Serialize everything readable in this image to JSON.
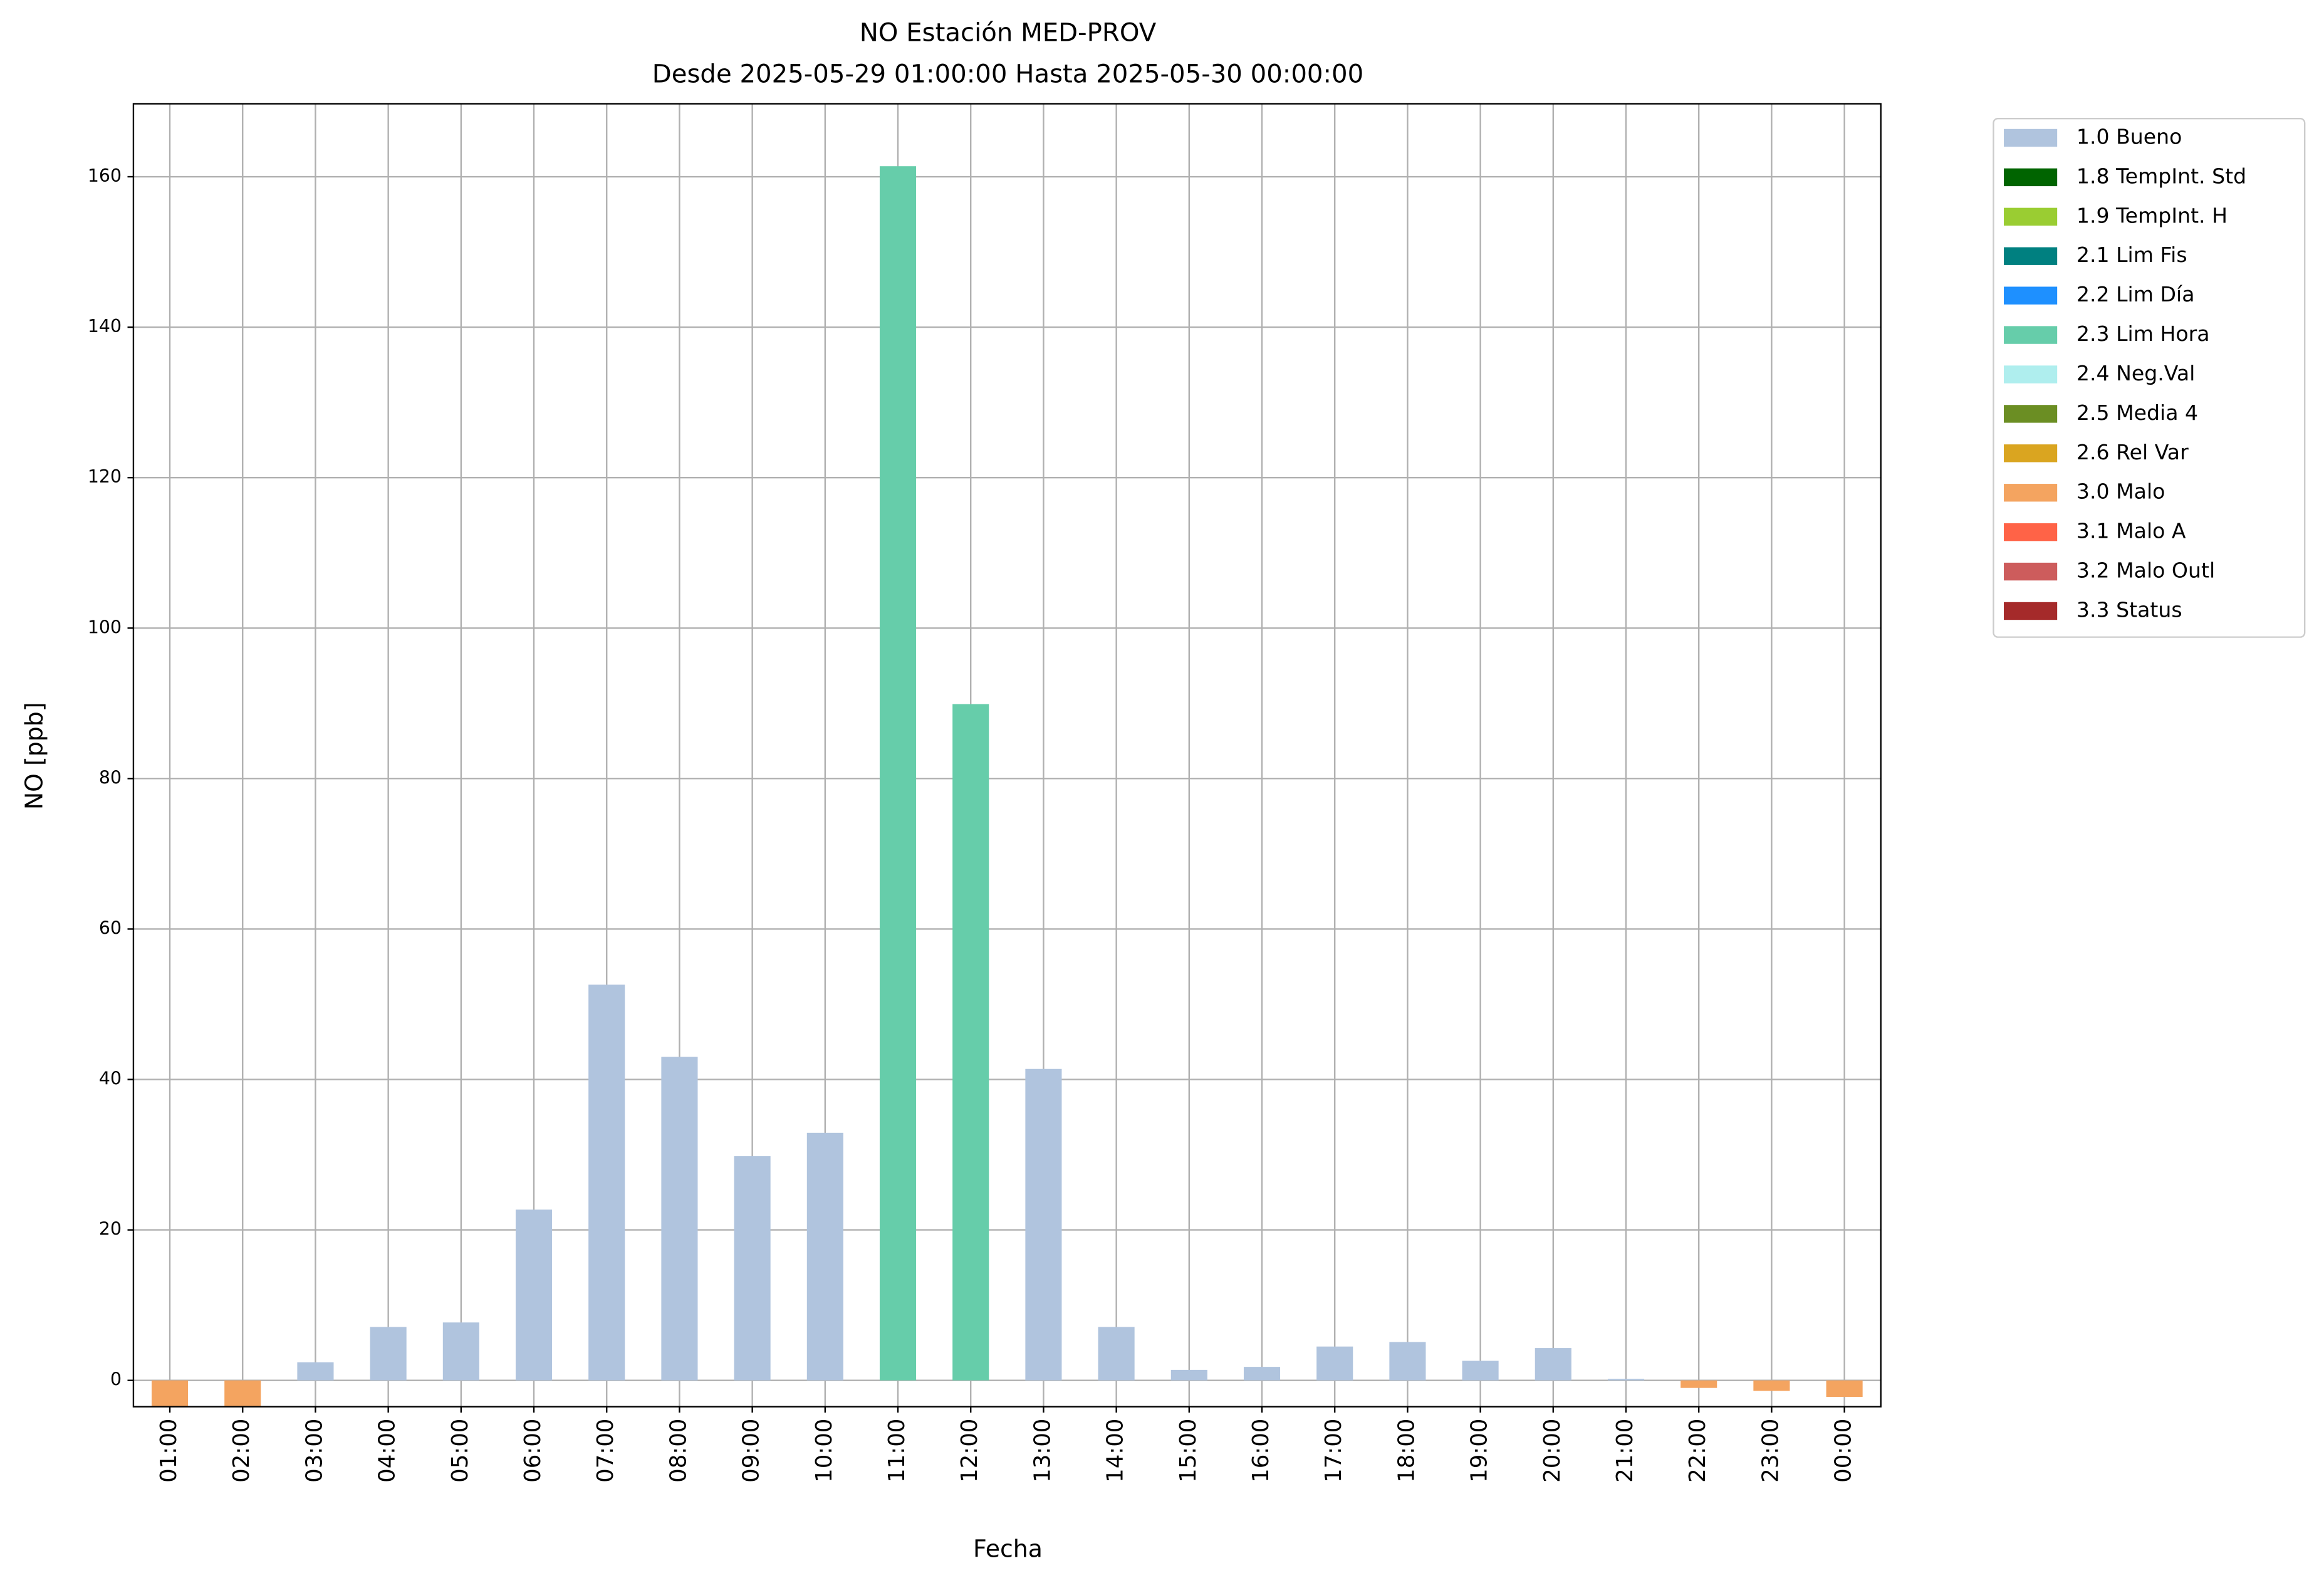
{
  "chart_data": {
    "type": "bar",
    "title": "NO Estación MED-PROV",
    "subtitle": "Desde 2025-05-29 01:00:00 Hasta 2025-05-30 00:00:00",
    "x_label": "Fecha",
    "y_label": "NO [ppb]",
    "categories": [
      "01:00",
      "02:00",
      "03:00",
      "04:00",
      "05:00",
      "06:00",
      "07:00",
      "08:00",
      "09:00",
      "10:00",
      "11:00",
      "12:00",
      "13:00",
      "14:00",
      "15:00",
      "16:00",
      "17:00",
      "18:00",
      "19:00",
      "20:00",
      "21:00",
      "22:00",
      "23:00",
      "00:00"
    ],
    "series": [
      {
        "name": "1.0 Bueno",
        "color": "#b0c4de",
        "values": [
          null,
          null,
          2.4,
          7.1,
          7.7,
          22.7,
          52.6,
          43.0,
          29.8,
          32.9,
          null,
          null,
          41.4,
          7.1,
          1.4,
          1.8,
          4.5,
          5.1,
          2.6,
          4.3,
          0.2,
          null,
          null,
          null
        ]
      },
      {
        "name": "1.8 TempInt. Std",
        "color": "#006400",
        "values": [
          null,
          null,
          null,
          null,
          null,
          null,
          null,
          null,
          null,
          null,
          null,
          null,
          null,
          null,
          null,
          null,
          null,
          null,
          null,
          null,
          null,
          null,
          null,
          null
        ]
      },
      {
        "name": "1.9 TempInt. H",
        "color": "#9acd32",
        "values": [
          null,
          null,
          null,
          null,
          null,
          null,
          null,
          null,
          null,
          null,
          null,
          null,
          null,
          null,
          null,
          null,
          null,
          null,
          null,
          null,
          null,
          null,
          null,
          null
        ]
      },
      {
        "name": "2.1 Lim Fis",
        "color": "#008080",
        "values": [
          null,
          null,
          null,
          null,
          null,
          null,
          null,
          null,
          null,
          null,
          null,
          null,
          null,
          null,
          null,
          null,
          null,
          null,
          null,
          null,
          null,
          null,
          null,
          null
        ]
      },
      {
        "name": "2.2 Lim Día",
        "color": "#1e90ff",
        "values": [
          null,
          null,
          null,
          null,
          null,
          null,
          null,
          null,
          null,
          null,
          null,
          null,
          null,
          null,
          null,
          null,
          null,
          null,
          null,
          null,
          null,
          null,
          null,
          null
        ]
      },
      {
        "name": "2.3 Lim Hora",
        "color": "#66cdaa",
        "values": [
          null,
          null,
          null,
          null,
          null,
          null,
          null,
          null,
          null,
          null,
          161.4,
          89.9,
          null,
          null,
          null,
          null,
          null,
          null,
          null,
          null,
          null,
          null,
          null,
          null
        ]
      },
      {
        "name": "2.4 Neg.Val",
        "color": "#afeeee",
        "values": [
          null,
          null,
          null,
          null,
          null,
          null,
          null,
          null,
          null,
          null,
          null,
          null,
          null,
          null,
          null,
          null,
          null,
          null,
          null,
          null,
          null,
          null,
          null,
          null
        ]
      },
      {
        "name": "2.5 Media 4",
        "color": "#6b8e23",
        "values": [
          null,
          null,
          null,
          null,
          null,
          null,
          null,
          null,
          null,
          null,
          null,
          null,
          null,
          null,
          null,
          null,
          null,
          null,
          null,
          null,
          null,
          null,
          null,
          null
        ]
      },
      {
        "name": "2.6 Rel Var",
        "color": "#daa520",
        "values": [
          null,
          null,
          null,
          null,
          null,
          null,
          null,
          null,
          null,
          null,
          null,
          null,
          null,
          null,
          null,
          null,
          null,
          null,
          null,
          null,
          null,
          null,
          null,
          null
        ]
      },
      {
        "name": "3.0 Malo",
        "color": "#f4a460",
        "values": [
          -3.4,
          -3.4,
          null,
          null,
          null,
          null,
          null,
          null,
          null,
          null,
          null,
          null,
          null,
          null,
          null,
          null,
          null,
          null,
          null,
          null,
          null,
          -1.0,
          -1.4,
          -2.2
        ]
      },
      {
        "name": "3.1 Malo A",
        "color": "#ff6347",
        "values": [
          null,
          null,
          null,
          null,
          null,
          null,
          null,
          null,
          null,
          null,
          null,
          null,
          null,
          null,
          null,
          null,
          null,
          null,
          null,
          null,
          null,
          null,
          null,
          null
        ]
      },
      {
        "name": "3.2 Malo Outl",
        "color": "#cd5c5c",
        "values": [
          null,
          null,
          null,
          null,
          null,
          null,
          null,
          null,
          null,
          null,
          null,
          null,
          null,
          null,
          null,
          null,
          null,
          null,
          null,
          null,
          null,
          null,
          null,
          null
        ]
      },
      {
        "name": "3.3 Status",
        "color": "#a52a2a",
        "values": [
          null,
          null,
          null,
          null,
          null,
          null,
          null,
          null,
          null,
          null,
          null,
          null,
          null,
          null,
          null,
          null,
          null,
          null,
          null,
          null,
          null,
          null,
          null,
          null
        ]
      }
    ],
    "ylim": [
      -3.5,
      169.7
    ],
    "yticks": [
      0,
      20,
      40,
      60,
      80,
      100,
      120,
      140,
      160
    ],
    "grid": true,
    "legend_position": "outside-right"
  }
}
